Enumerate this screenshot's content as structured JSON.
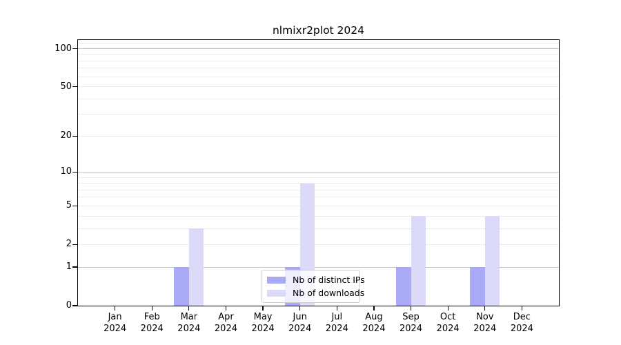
{
  "title": "nlmixr2plot 2024",
  "legend": {
    "items": [
      {
        "label": "Nb of distinct IPs",
        "color": "#a9a9f7"
      },
      {
        "label": "Nb of downloads",
        "color": "#dbdbf9"
      }
    ]
  },
  "colors": {
    "bar_distinct_ips": "#a9a9f7",
    "bar_downloads": "#dbdbf9",
    "grid_major": "#c2c2c2",
    "grid_minor": "#ebebeb",
    "axis_frame": "#000000",
    "legend_border": "#cccccc",
    "background": "#ffffff"
  },
  "chart_data": {
    "type": "bar",
    "title": "nlmixr2plot 2024",
    "categories": [
      "Jan 2024",
      "Feb 2024",
      "Mar 2024",
      "Apr 2024",
      "May 2024",
      "Jun 2024",
      "Jul 2024",
      "Aug 2024",
      "Sep 2024",
      "Oct 2024",
      "Nov 2024",
      "Dec 2024"
    ],
    "series": [
      {
        "name": "Nb of distinct IPs",
        "color": "#a9a9f7",
        "values": [
          0,
          0,
          1,
          0,
          0,
          1,
          0,
          0,
          1,
          0,
          1,
          0
        ]
      },
      {
        "name": "Nb of downloads",
        "color": "#dbdbf9",
        "values": [
          0,
          0,
          3,
          0,
          0,
          8,
          0,
          0,
          4,
          0,
          4,
          0
        ]
      }
    ],
    "xlabel": "",
    "ylabel": "",
    "y_scale": "log1p",
    "ylim": [
      0,
      117
    ],
    "y_ticks": [
      0,
      1,
      2,
      5,
      10,
      20,
      50,
      100
    ],
    "major_gridlines": [
      1,
      10,
      100
    ],
    "minor_gridlines": [
      2,
      3,
      4,
      5,
      6,
      7,
      8,
      9,
      20,
      30,
      40,
      50,
      60,
      70,
      80,
      90,
      110
    ],
    "grid": true,
    "legend_position": "lower center inside"
  }
}
